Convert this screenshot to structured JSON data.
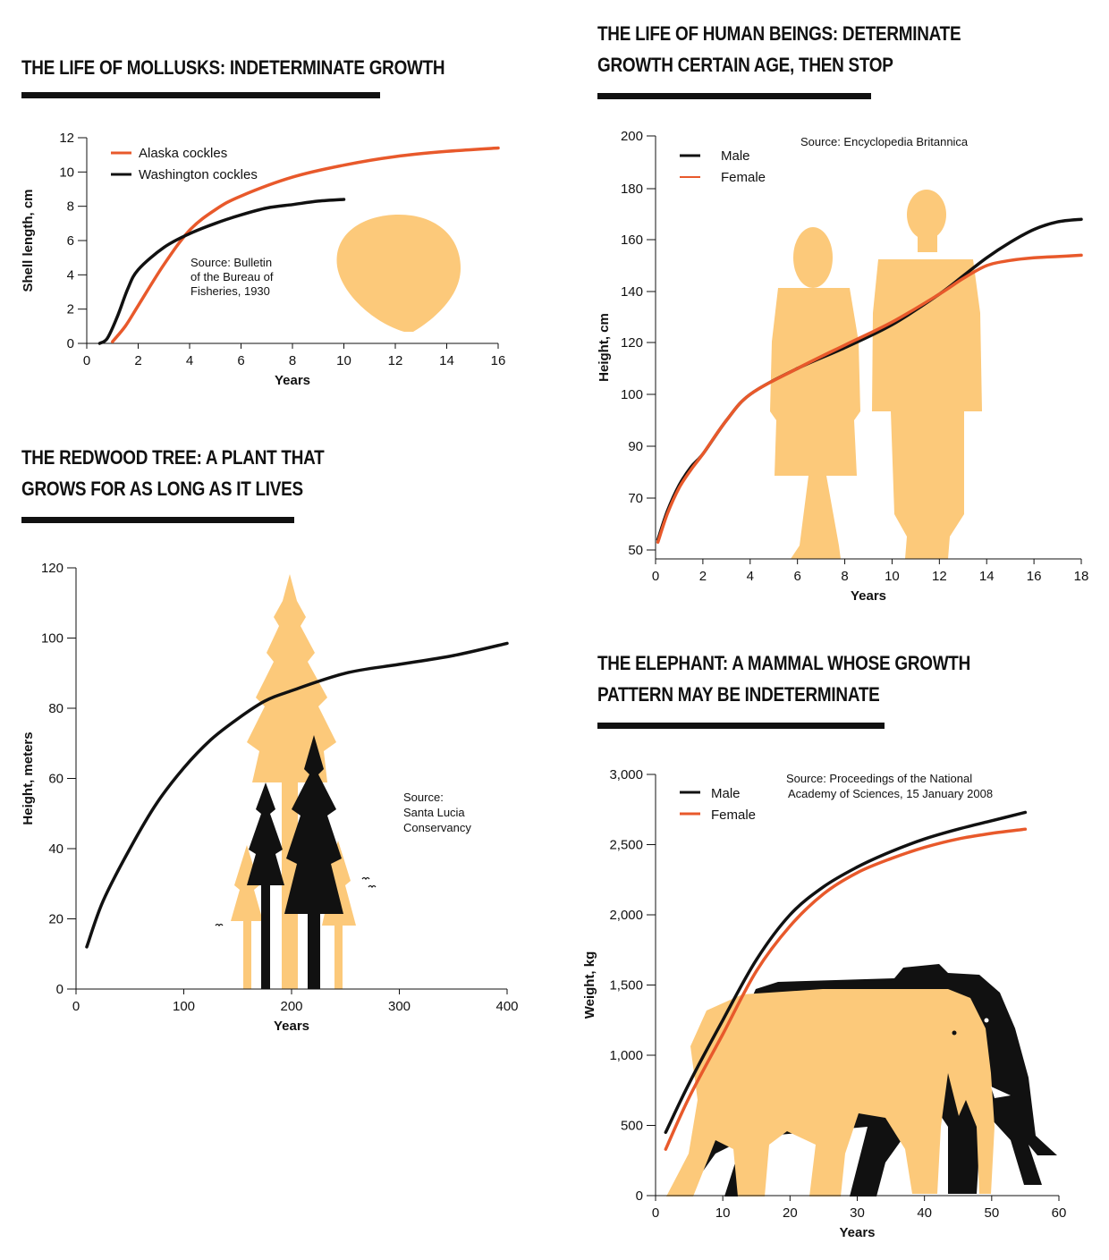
{
  "colors": {
    "orange": "#e8592b",
    "black": "#111111",
    "silhouette": "#fcc97a"
  },
  "mollusks": {
    "title": "THE LIFE OF MOLLUSKS: INDETERMINATE GROWTH",
    "source_lines": [
      "Source: Bulletin",
      "of the Bureau of",
      "Fisheries, 1930"
    ],
    "chart_data": {
      "type": "line",
      "xlabel": "Years",
      "ylabel": "Shell length, cm",
      "xlim": [
        0,
        16
      ],
      "ylim": [
        0,
        12
      ],
      "xticks": [
        "0",
        "2",
        "4",
        "6",
        "8",
        "10",
        "12",
        "14",
        "16"
      ],
      "yticks": [
        "0",
        "2",
        "4",
        "6",
        "8",
        "10",
        "12"
      ],
      "legend_position": "top-left",
      "series": [
        {
          "name": "Alaska cockles",
          "color": "#e8592b",
          "x": [
            1,
            1.5,
            2,
            3,
            4,
            5,
            6,
            8,
            10,
            12,
            14,
            16
          ],
          "y": [
            0.1,
            1.0,
            2.2,
            4.6,
            6.6,
            7.8,
            8.6,
            9.7,
            10.4,
            10.9,
            11.2,
            11.4
          ]
        },
        {
          "name": "Washington cockles",
          "color": "#111111",
          "x": [
            0.5,
            0.8,
            1.2,
            1.6,
            2,
            3,
            4,
            5,
            6,
            7,
            8,
            9,
            10
          ],
          "y": [
            0,
            0.3,
            1.6,
            3.2,
            4.3,
            5.6,
            6.4,
            7.0,
            7.5,
            7.9,
            8.1,
            8.3,
            8.4
          ]
        }
      ]
    }
  },
  "humans": {
    "title_lines": [
      "THE LIFE OF HUMAN BEINGS: DETERMINATE",
      "GROWTH CERTAIN AGE, THEN STOP"
    ],
    "source": "Source: Encyclopedia Britannica",
    "chart_data": {
      "type": "line",
      "xlabel": "Years",
      "ylabel": "Height, cm",
      "xlim": [
        0,
        18
      ],
      "yticks": [
        "50",
        "70",
        "90",
        "100",
        "120",
        "140",
        "160",
        "180",
        "200"
      ],
      "xticks": [
        "0",
        "2",
        "4",
        "6",
        "8",
        "10",
        "12",
        "14",
        "16",
        "18"
      ],
      "legend_position": "top-left",
      "series": [
        {
          "name": "Male",
          "color": "#111111",
          "x": [
            0.1,
            0.5,
            1,
            1.5,
            2,
            3,
            4,
            6,
            8,
            10,
            12,
            13,
            14,
            15,
            16,
            17,
            18
          ],
          "y": [
            54,
            65,
            75,
            82,
            87,
            95,
            100,
            110,
            118,
            127,
            139,
            146,
            153,
            159,
            164,
            167,
            168
          ]
        },
        {
          "name": "Female",
          "color": "#e8592b",
          "x": [
            0.1,
            0.5,
            1,
            1.5,
            2,
            3,
            4,
            6,
            8,
            10,
            12,
            13,
            14,
            15,
            16,
            17,
            18
          ],
          "y": [
            53,
            64,
            74,
            81,
            87,
            95,
            100,
            110,
            119,
            128,
            139,
            145,
            150,
            152,
            153,
            153.5,
            154
          ]
        }
      ]
    }
  },
  "redwood": {
    "title_lines": [
      "THE REDWOOD TREE: A PLANT THAT",
      "GROWS FOR AS LONG AS IT LIVES"
    ],
    "source_lines": [
      "Source:",
      "Santa Lucia",
      "Conservancy"
    ],
    "chart_data": {
      "type": "line",
      "xlabel": "Years",
      "ylabel": "Height, meters",
      "xlim": [
        0,
        400
      ],
      "ylim": [
        0,
        120
      ],
      "xticks": [
        "0",
        "100",
        "200",
        "300",
        "400"
      ],
      "yticks": [
        "0",
        "20",
        "40",
        "60",
        "80",
        "100",
        "120"
      ],
      "series": [
        {
          "color": "#111111",
          "x": [
            10,
            25,
            50,
            75,
            100,
            125,
            150,
            175,
            200,
            250,
            300,
            350,
            400
          ],
          "y": [
            12,
            25,
            40,
            53,
            63,
            71,
            77,
            82,
            85,
            90,
            92.5,
            95,
            98.5
          ]
        }
      ]
    }
  },
  "elephant": {
    "title_lines": [
      "THE ELEPHANT: A MAMMAL WHOSE GROWTH",
      "PATTERN MAY BE INDETERMINATE"
    ],
    "source_lines": [
      "Source: Proceedings of the National",
      "Academy of Sciences, 15 January 2008"
    ],
    "chart_data": {
      "type": "line",
      "xlabel": "Years",
      "ylabel": "Weight, kg",
      "xlim": [
        0,
        60
      ],
      "ylim": [
        0,
        3000
      ],
      "xticks": [
        "0",
        "10",
        "20",
        "30",
        "40",
        "50",
        "60"
      ],
      "yticks": [
        "0",
        "500",
        "1,000",
        "1,500",
        "2,000",
        "2,500",
        "3,000"
      ],
      "legend_position": "top-left",
      "series": [
        {
          "name": "Male",
          "color": "#111111",
          "x": [
            1.5,
            5,
            10,
            15,
            20,
            25,
            30,
            35,
            40,
            45,
            50,
            55
          ],
          "y": [
            450,
            800,
            1250,
            1680,
            2000,
            2200,
            2340,
            2450,
            2540,
            2610,
            2670,
            2730
          ]
        },
        {
          "name": "Female",
          "color": "#e8592b",
          "x": [
            1.5,
            5,
            10,
            15,
            20,
            25,
            30,
            35,
            40,
            45,
            50,
            55
          ],
          "y": [
            330,
            700,
            1150,
            1600,
            1920,
            2150,
            2300,
            2400,
            2480,
            2540,
            2580,
            2610
          ]
        }
      ]
    }
  }
}
